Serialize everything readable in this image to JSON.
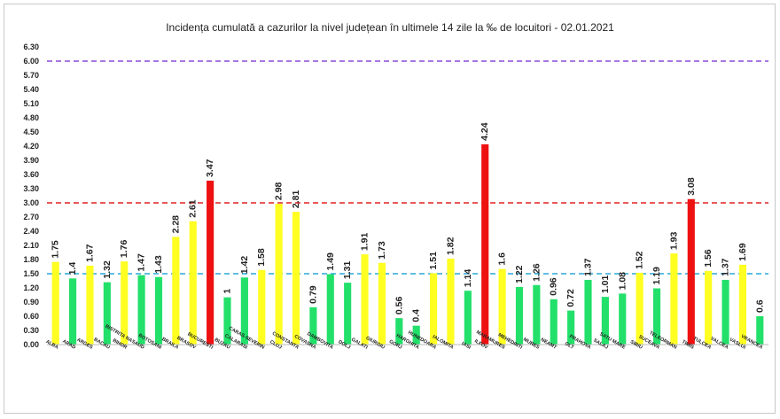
{
  "chart_data": {
    "type": "bar",
    "title": "Incidența cumulată a cazurilor la nivel județean în ultimele 14 zile la ‰ de locuitori - 02.01.2021",
    "xlabel": "",
    "ylabel": "",
    "ylim": [
      0,
      6.3
    ],
    "yticks": [
      "0.00",
      "0.30",
      "0.60",
      "0.90",
      "1.20",
      "1.50",
      "1.80",
      "2.10",
      "2.40",
      "2.70",
      "3.00",
      "3.30",
      "3.60",
      "3.90",
      "4.20",
      "4.50",
      "4.80",
      "5.10",
      "5.40",
      "5.70",
      "6.00",
      "6.30"
    ],
    "grid": false,
    "legend": "none",
    "categories": [
      "ALBA",
      "ARAD",
      "ARGES",
      "BACAU",
      "BIHOR",
      "BISTRITA NASAUD",
      "BOTOSANI",
      "BRAILA",
      "BRASOV",
      "BUCURESTI",
      "BUZAU",
      "CALARASI",
      "CARAS-SEVERIN",
      "CLUJ",
      "CONSTANTA",
      "COVASNA",
      "DAMBOVITA",
      "DOLJ",
      "GALATI",
      "GIURGIU",
      "GORJ",
      "HARGHITA",
      "HUNEDOARA",
      "IALOMITA",
      "IASI",
      "ILFOV",
      "MARAMURES",
      "MEHEDINTI",
      "MURES",
      "NEAMT",
      "OLT",
      "PRAHOVA",
      "SALAJ",
      "SATU MARE",
      "SIBIU",
      "SUCEAVA",
      "TELEORMAN",
      "TIMIS",
      "TULCEA",
      "VALCEA",
      "VASLUI",
      "VRANCEA"
    ],
    "values": [
      1.75,
      1.4,
      1.67,
      1.32,
      1.76,
      1.47,
      1.43,
      2.28,
      2.61,
      3.47,
      1,
      1.42,
      1.58,
      2.98,
      2.81,
      0.79,
      1.49,
      1.31,
      1.91,
      1.73,
      0.56,
      0.4,
      1.51,
      1.82,
      1.14,
      4.24,
      1.6,
      1.22,
      1.26,
      0.96,
      0.72,
      1.37,
      1.01,
      1.08,
      1.52,
      1.19,
      1.93,
      3.08,
      1.56,
      1.37,
      1.69,
      0.6
    ],
    "value_labels": [
      "1.75",
      "1.4",
      "1.67",
      "1.32",
      "1.76",
      "1.47",
      "1.43",
      "2.28",
      "2.61",
      "3.47",
      "1",
      "1.42",
      "1.58",
      "2.98",
      "2.81",
      "0.79",
      "1.49",
      "1.31",
      "1.91",
      "1.73",
      "0.56",
      "0.4",
      "1.51",
      "1.82",
      "1.14",
      "4.24",
      "1.6",
      "1.22",
      "1.26",
      "0.96",
      "0.72",
      "1.37",
      "1.01",
      "1.08",
      "1.52",
      "1.19",
      "1.93",
      "3.08",
      "1.56",
      "1.37",
      "1.69",
      "0.6"
    ],
    "thresholds": [
      {
        "value": 6.0,
        "color": "#8a4bd6",
        "style": "dashed"
      },
      {
        "value": 3.0,
        "color": "#e02020",
        "style": "dashed"
      },
      {
        "value": 1.5,
        "color": "#2aa8d8",
        "style": "dashed"
      }
    ],
    "colors": {
      "green": "#22e06a",
      "yellow": "#ffff22",
      "red": "#ee1111"
    }
  }
}
